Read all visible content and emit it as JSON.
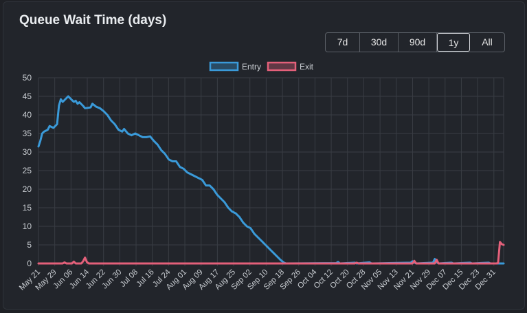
{
  "title": "Queue Wait Time (days)",
  "range_buttons": [
    {
      "label": "7d",
      "active": false
    },
    {
      "label": "30d",
      "active": false
    },
    {
      "label": "90d",
      "active": false
    },
    {
      "label": "1y",
      "active": true
    },
    {
      "label": "All",
      "active": false
    }
  ],
  "colors": {
    "entry": "#3a9ad9",
    "exit": "#e4607a",
    "grid": "#393d44",
    "text": "#c9cdd2"
  },
  "chart_data": {
    "type": "line",
    "ylim": [
      0,
      50
    ],
    "y_ticks": [
      0,
      5,
      10,
      15,
      20,
      25,
      30,
      35,
      40,
      45,
      50
    ],
    "x_tick_labels": [
      "May 21",
      "May 29",
      "Jun 06",
      "Jun 14",
      "Jun 22",
      "Jun 30",
      "Jul 08",
      "Jul 16",
      "Jul 24",
      "Aug 01",
      "Aug 09",
      "Aug 17",
      "Aug 25",
      "Sep 02",
      "Sep 10",
      "Sep 18",
      "Sep 26",
      "Oct 04",
      "Oct 12",
      "Oct 20",
      "Oct 28",
      "Nov 05",
      "Nov 13",
      "Nov 21",
      "Nov 29",
      "Dec 07",
      "Dec 15",
      "Dec 23",
      "Dec 31"
    ],
    "legend": {
      "placement": "top-center",
      "grid": true
    },
    "series": [
      {
        "name": "Entry",
        "color": "#3a9ad9",
        "points": [
          [
            0,
            31.5
          ],
          [
            1,
            33
          ],
          [
            2,
            35
          ],
          [
            3,
            35.5
          ],
          [
            5,
            36
          ],
          [
            6,
            37
          ],
          [
            8,
            36.5
          ],
          [
            10,
            37.5
          ],
          [
            11,
            42.5
          ],
          [
            12,
            44.2
          ],
          [
            13,
            43.5
          ],
          [
            14,
            44
          ],
          [
            15,
            44.5
          ],
          [
            16,
            45
          ],
          [
            17,
            44.5
          ],
          [
            18,
            44
          ],
          [
            19,
            43.5
          ],
          [
            20,
            43.8
          ],
          [
            21,
            43
          ],
          [
            22,
            43.4
          ],
          [
            24,
            42.4
          ],
          [
            25,
            41.8
          ],
          [
            28,
            42
          ],
          [
            29,
            43
          ],
          [
            31,
            42.2
          ],
          [
            33,
            41.8
          ],
          [
            35,
            41
          ],
          [
            37,
            40
          ],
          [
            39,
            38.5
          ],
          [
            41,
            37.5
          ],
          [
            43,
            36
          ],
          [
            45,
            35.5
          ],
          [
            46,
            36.2
          ],
          [
            48,
            35
          ],
          [
            50,
            34.5
          ],
          [
            52,
            35
          ],
          [
            54,
            34.5
          ],
          [
            56,
            34
          ],
          [
            58,
            34
          ],
          [
            60,
            34.2
          ],
          [
            62,
            33
          ],
          [
            64,
            32
          ],
          [
            66,
            30.5
          ],
          [
            68,
            29.5
          ],
          [
            70,
            28
          ],
          [
            72,
            27.5
          ],
          [
            74,
            27.5
          ],
          [
            76,
            26
          ],
          [
            78,
            25.5
          ],
          [
            80,
            24.5
          ],
          [
            82,
            24
          ],
          [
            84,
            23.5
          ],
          [
            86,
            23
          ],
          [
            88,
            22.5
          ],
          [
            90,
            21
          ],
          [
            92,
            21
          ],
          [
            94,
            20
          ],
          [
            96,
            18.5
          ],
          [
            98,
            17.5
          ],
          [
            100,
            16.5
          ],
          [
            102,
            15
          ],
          [
            104,
            14
          ],
          [
            106,
            13.5
          ],
          [
            108,
            12.5
          ],
          [
            110,
            11
          ],
          [
            112,
            10
          ],
          [
            114,
            9.5
          ],
          [
            116,
            8
          ],
          [
            118,
            7
          ],
          [
            120,
            6
          ],
          [
            122,
            5
          ],
          [
            124,
            4
          ],
          [
            126,
            3
          ],
          [
            128,
            2
          ],
          [
            130,
            1
          ],
          [
            131,
            0.6
          ],
          [
            132,
            0.2
          ],
          [
            133,
            0
          ],
          [
            160,
            0.1
          ],
          [
            161,
            0.4
          ],
          [
            162,
            0
          ],
          [
            170,
            0.2
          ],
          [
            171,
            0
          ],
          [
            178,
            0.3
          ],
          [
            179,
            0
          ],
          [
            200,
            0.2
          ],
          [
            201,
            0.6
          ],
          [
            202,
            0.3
          ],
          [
            203,
            0
          ],
          [
            212,
            0.2
          ],
          [
            213,
            1.2
          ],
          [
            214,
            0.4
          ],
          [
            215,
            0
          ],
          [
            222,
            0.2
          ],
          [
            223,
            0
          ],
          [
            232,
            0.2
          ],
          [
            233,
            0
          ],
          [
            242,
            0.2
          ],
          [
            243,
            0
          ],
          [
            250,
            0
          ]
        ]
      },
      {
        "name": "Exit",
        "color": "#e4607a",
        "points": [
          [
            0,
            0
          ],
          [
            13,
            0
          ],
          [
            14,
            0.3
          ],
          [
            15,
            0
          ],
          [
            18,
            0
          ],
          [
            19,
            0.5
          ],
          [
            20,
            0
          ],
          [
            23,
            0
          ],
          [
            24,
            0.6
          ],
          [
            25,
            1.6
          ],
          [
            26,
            0.4
          ],
          [
            27,
            0
          ],
          [
            170,
            0
          ],
          [
            171,
            0.2
          ],
          [
            172,
            0
          ],
          [
            201,
            0
          ],
          [
            202,
            0.7
          ],
          [
            203,
            0
          ],
          [
            213,
            0
          ],
          [
            214,
            1
          ],
          [
            215,
            0
          ],
          [
            246,
            0
          ],
          [
            247,
            0.1
          ],
          [
            248,
            5.8
          ],
          [
            249,
            5.2
          ],
          [
            250,
            5
          ]
        ]
      }
    ]
  }
}
